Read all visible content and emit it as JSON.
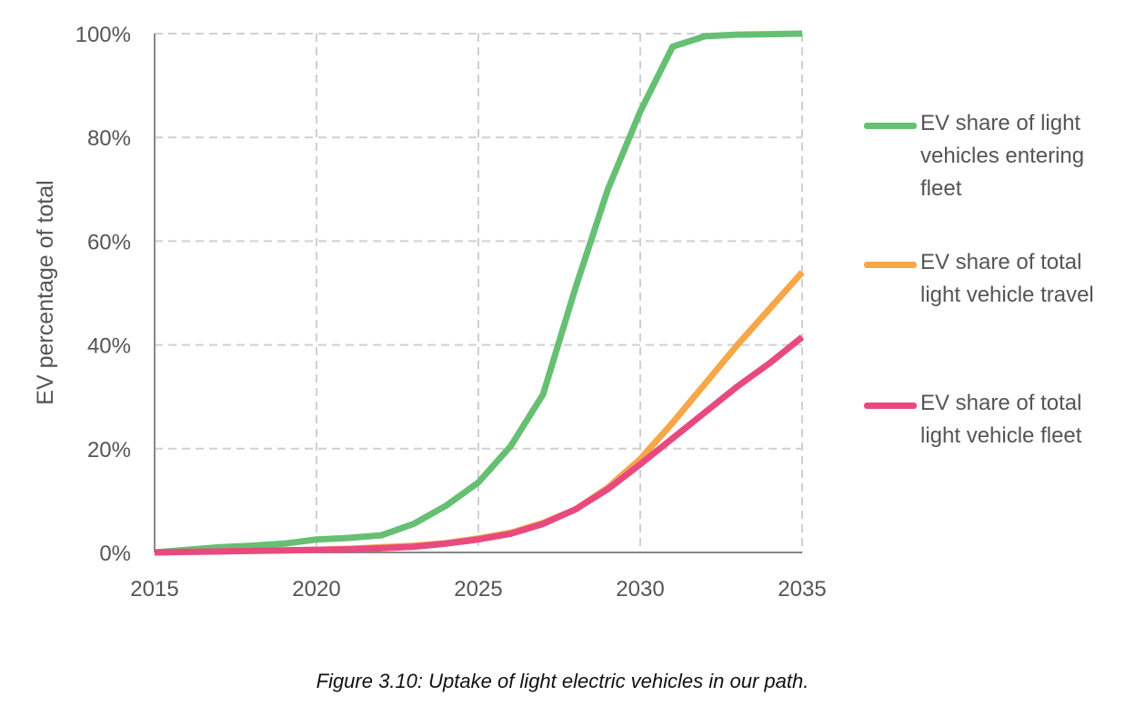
{
  "chart_data": {
    "type": "line",
    "title": "",
    "xlabel": "",
    "ylabel": "EV percentage of total",
    "xlim": [
      2015,
      2035
    ],
    "ylim": [
      0,
      100
    ],
    "x_ticks": [
      "2015",
      "2020",
      "2025",
      "2030",
      "2035"
    ],
    "y_ticks": [
      "0%",
      "20%",
      "40%",
      "60%",
      "80%",
      "100%"
    ],
    "grid": true,
    "legend_position": "right",
    "x": [
      2015,
      2016,
      2017,
      2018,
      2019,
      2020,
      2021,
      2022,
      2023,
      2024,
      2025,
      2026,
      2027,
      2028,
      2029,
      2030,
      2031,
      2032,
      2033,
      2034,
      2035
    ],
    "series": [
      {
        "name": "EV share of light vehicles entering fleet",
        "color": "#66bf73",
        "values": [
          0,
          0.5,
          1,
          1.3,
          1.7,
          2.5,
          2.8,
          3.3,
          5.5,
          9,
          13.5,
          20.5,
          30.5,
          51,
          70,
          85,
          97.5,
          99.5,
          99.8,
          99.9,
          100
        ]
      },
      {
        "name": "EV share of total light vehicle travel",
        "color": "#f7a648",
        "values": [
          0,
          0.1,
          0.2,
          0.3,
          0.4,
          0.5,
          0.7,
          1,
          1.3,
          1.8,
          2.7,
          3.8,
          5.7,
          8.3,
          12.5,
          18,
          25,
          32.5,
          40,
          47,
          54
        ]
      },
      {
        "name": "EV share of total light vehicle fleet",
        "color": "#e84a7f",
        "values": [
          0,
          0.1,
          0.2,
          0.3,
          0.4,
          0.5,
          0.6,
          0.8,
          1.1,
          1.7,
          2.5,
          3.6,
          5.5,
          8.3,
          12.2,
          17,
          22,
          27,
          32,
          36.5,
          41.5
        ]
      }
    ]
  },
  "caption": "Figure 3.10: Uptake of light electric vehicles in our path."
}
